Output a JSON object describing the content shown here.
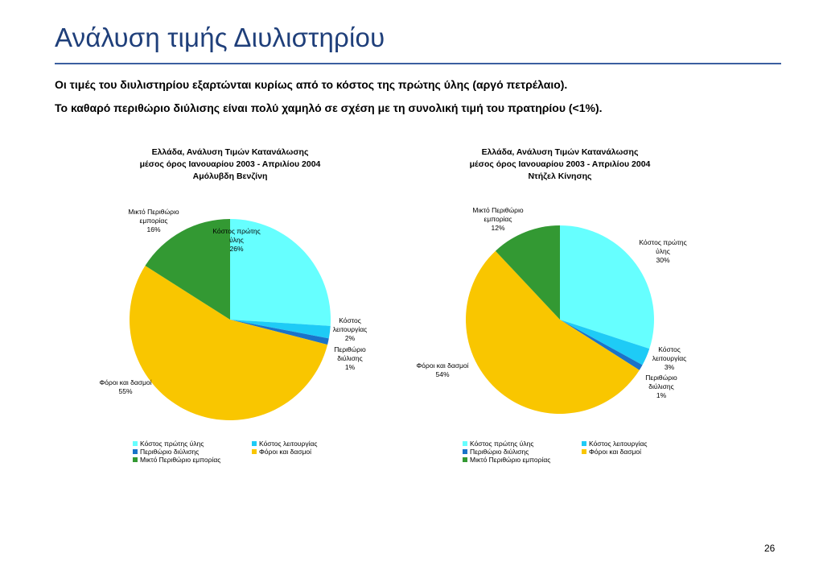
{
  "slide": {
    "title": "Ανάλυση τιμής Διυλιστηρίου",
    "bullets": [
      "Οι τιμές του διυλιστηρίου εξαρτώνται κυρίως από το κόστος της πρώτης ύλης (αργό πετρέλαιο).",
      "Το καθαρό περιθώριο διύλισης είναι πολύ χαμηλό σε σχέση με τη συνολική τιμή του πρατηρίου (<1%)."
    ],
    "page_number": "26"
  },
  "chart_data": [
    {
      "type": "pie",
      "title": [
        "Ελλάδα, Ανάλυση Τιμών Κατανάλωσης",
        "μέσος όρος Ιανουαρίου 2003 - Απριλίου 2004",
        "Αμόλυβδη Βενζίνη"
      ],
      "slices": [
        {
          "name": "Κόστος πρώτης ύλης",
          "label": [
            "Κόστος πρώτης",
            "ύλης",
            "26%"
          ],
          "value": 26,
          "color": "#66ffff"
        },
        {
          "name": "Κόστος λειτουργίας",
          "label": [
            "Κόστος",
            "λειτουργίας",
            "2%"
          ],
          "value": 2,
          "color": "#1ecbf6"
        },
        {
          "name": "Περιθώριο διύλισης",
          "label": [
            "Περιθώριο",
            "διύλισης",
            "1%"
          ],
          "value": 1,
          "color": "#1a73c9"
        },
        {
          "name": "Φόροι και δασμοί",
          "label": [
            "Φόροι και δασμοί",
            "55%"
          ],
          "value": 55,
          "color": "#f9c600"
        },
        {
          "name": "Μικτό Περιθώριο εμπορίας",
          "label": [
            "Μικτό Περιθώριο",
            "εμπορίας",
            "16%"
          ],
          "value": 16,
          "color": "#339933"
        }
      ],
      "legend": [
        "Κόστος πρώτης ύλης",
        "Κόστος λειτουργίας",
        "Περιθώριο διύλισης",
        "Φόροι και δασμοί",
        "Μικτό Περιθώριο εμπορίας"
      ],
      "legend_position": "bottom"
    },
    {
      "type": "pie",
      "title": [
        "Ελλάδα, Ανάλυση Τιμών Κατανάλωσης",
        "μέσος όρος Ιανουαρίου 2003 - Απριλίου 2004",
        "Ντήζελ Κίνησης"
      ],
      "slices": [
        {
          "name": "Κόστος πρώτης ύλης",
          "label": [
            "Κόστος πρώτης",
            "ύλης",
            "30%"
          ],
          "value": 30,
          "color": "#66ffff"
        },
        {
          "name": "Κόστος λειτουργίας",
          "label": [
            "Κόστος",
            "λειτουργίας",
            "3%"
          ],
          "value": 3,
          "color": "#1ecbf6"
        },
        {
          "name": "Περιθώριο διύλισης",
          "label": [
            "Περιθώριο",
            "διύλισης",
            "1%"
          ],
          "value": 1,
          "color": "#1a73c9"
        },
        {
          "name": "Φόροι και δασμοί",
          "label": [
            "Φόροι και δασμοί",
            "54%"
          ],
          "value": 54,
          "color": "#f9c600"
        },
        {
          "name": "Μικτό Περιθώριο εμπορίας",
          "label": [
            "Μικτό Περιθώριο",
            "εμπορίας",
            "12%"
          ],
          "value": 12,
          "color": "#339933"
        }
      ],
      "legend": [
        "Κόστος πρώτης ύλης",
        "Κόστος λειτουργίας",
        "Περιθώριο διύλισης",
        "Φόροι και δασμοί",
        "Μικτό Περιθώριο εμπορίας"
      ],
      "legend_position": "bottom"
    }
  ]
}
